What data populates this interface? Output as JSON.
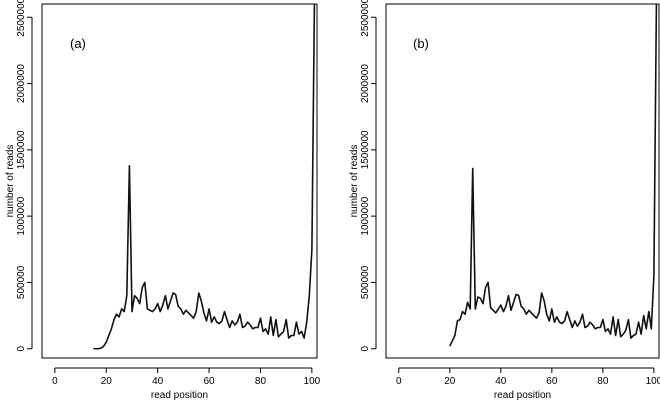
{
  "chart_data": [
    {
      "type": "line",
      "panel_label": "(a)",
      "xlabel": "read position",
      "ylabel": "number of reads",
      "xlim": [
        -5,
        102
      ],
      "ylim": [
        -70000,
        2600000
      ],
      "xticks": [
        0,
        20,
        40,
        60,
        80,
        100
      ],
      "yticks": [
        0,
        500000,
        1000000,
        1500000,
        2000000,
        2500000
      ],
      "grid": false,
      "series": [
        {
          "x": [
            15,
            16,
            17,
            18,
            19,
            20,
            21,
            22,
            23,
            24,
            25,
            26,
            27,
            28,
            29,
            30,
            31,
            32,
            33,
            34,
            35,
            36,
            37,
            38,
            39,
            40,
            41,
            42,
            43,
            44,
            45,
            46,
            47,
            48,
            49,
            50,
            51,
            52,
            53,
            54,
            55,
            56,
            57,
            58,
            59,
            60,
            61,
            62,
            63,
            64,
            65,
            66,
            67,
            68,
            69,
            70,
            71,
            72,
            73,
            74,
            75,
            76,
            77,
            78,
            79,
            80,
            81,
            82,
            83,
            84,
            85,
            86,
            87,
            88,
            89,
            90,
            91,
            92,
            93,
            94,
            95,
            96,
            97,
            98,
            99,
            100,
            101
          ],
          "y": [
            0,
            0,
            0,
            5000,
            20000,
            50000,
            100000,
            150000,
            220000,
            260000,
            240000,
            300000,
            280000,
            400000,
            1380000,
            280000,
            400000,
            380000,
            340000,
            460000,
            500000,
            300000,
            290000,
            280000,
            300000,
            340000,
            280000,
            330000,
            400000,
            300000,
            360000,
            420000,
            410000,
            320000,
            300000,
            260000,
            290000,
            270000,
            250000,
            230000,
            280000,
            420000,
            360000,
            270000,
            210000,
            300000,
            200000,
            240000,
            200000,
            190000,
            210000,
            280000,
            220000,
            160000,
            210000,
            180000,
            200000,
            260000,
            160000,
            170000,
            200000,
            180000,
            150000,
            160000,
            160000,
            230000,
            130000,
            150000,
            110000,
            240000,
            100000,
            220000,
            90000,
            110000,
            130000,
            220000,
            80000,
            100000,
            100000,
            200000,
            110000,
            130000,
            80000,
            200000,
            400000,
            750000,
            2600000
          ]
        }
      ]
    },
    {
      "type": "line",
      "panel_label": "(b)",
      "xlabel": "read position",
      "ylabel": "number of reads",
      "xlim": [
        -5,
        102
      ],
      "ylim": [
        -70000,
        2600000
      ],
      "xticks": [
        0,
        20,
        40,
        60,
        80,
        100
      ],
      "yticks": [
        0,
        500000,
        1000000,
        1500000,
        2000000,
        2500000
      ],
      "grid": false,
      "series": [
        {
          "x": [
            20,
            21,
            22,
            23,
            24,
            25,
            26,
            27,
            28,
            29,
            30,
            31,
            32,
            33,
            34,
            35,
            36,
            37,
            38,
            39,
            40,
            41,
            42,
            43,
            44,
            45,
            46,
            47,
            48,
            49,
            50,
            51,
            52,
            53,
            54,
            55,
            56,
            57,
            58,
            59,
            60,
            61,
            62,
            63,
            64,
            65,
            66,
            67,
            68,
            69,
            70,
            71,
            72,
            73,
            74,
            75,
            76,
            77,
            78,
            79,
            80,
            81,
            82,
            83,
            84,
            85,
            86,
            87,
            88,
            89,
            90,
            91,
            92,
            93,
            94,
            95,
            96,
            97,
            98,
            99,
            100,
            101
          ],
          "y": [
            20000,
            60000,
            100000,
            210000,
            220000,
            280000,
            260000,
            350000,
            300000,
            1360000,
            300000,
            390000,
            380000,
            340000,
            460000,
            500000,
            310000,
            290000,
            270000,
            300000,
            330000,
            280000,
            320000,
            400000,
            290000,
            350000,
            410000,
            400000,
            320000,
            300000,
            260000,
            290000,
            270000,
            250000,
            230000,
            270000,
            420000,
            360000,
            260000,
            210000,
            300000,
            200000,
            240000,
            200000,
            190000,
            210000,
            280000,
            220000,
            160000,
            210000,
            170000,
            200000,
            260000,
            160000,
            170000,
            200000,
            180000,
            150000,
            160000,
            160000,
            220000,
            130000,
            150000,
            110000,
            240000,
            100000,
            220000,
            90000,
            110000,
            140000,
            220000,
            80000,
            100000,
            110000,
            200000,
            110000,
            250000,
            150000,
            280000,
            150000,
            550000,
            2600000
          ]
        }
      ]
    }
  ]
}
